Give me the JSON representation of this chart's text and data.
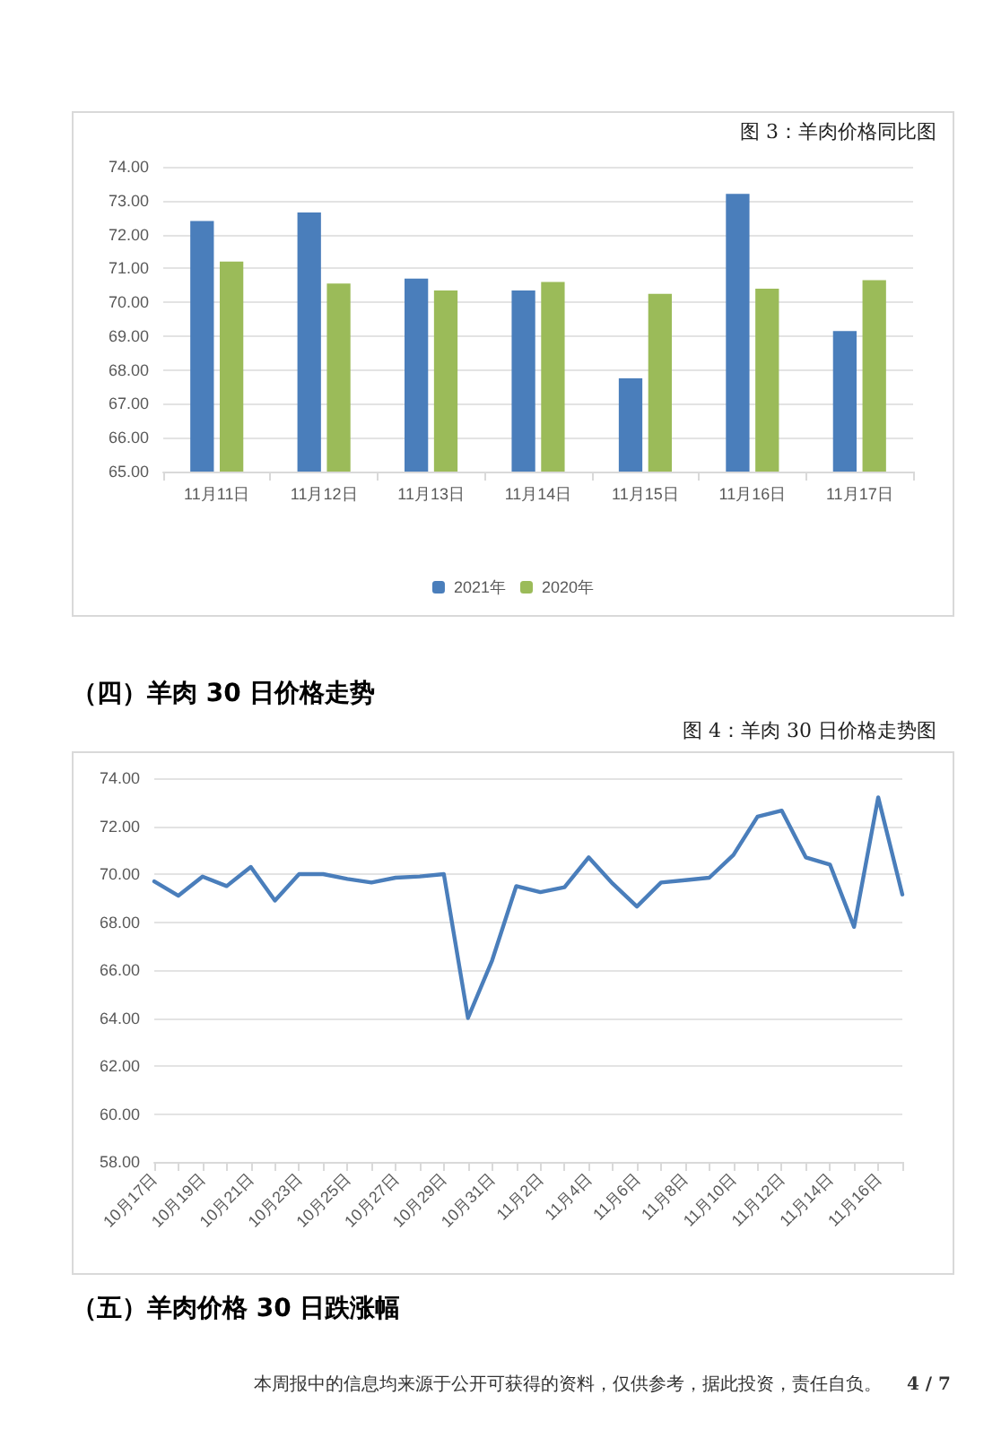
{
  "chart_data": [
    {
      "type": "bar",
      "title": "图 3：羊肉价格同比图",
      "categories": [
        "11月11日",
        "11月12日",
        "11月13日",
        "11月14日",
        "11月15日",
        "11月16日",
        "11月17日"
      ],
      "series": [
        {
          "name": "2021年",
          "color": "#4a7ebb",
          "values": [
            72.4,
            72.65,
            70.7,
            70.35,
            67.75,
            73.2,
            69.15
          ]
        },
        {
          "name": "2020年",
          "color": "#9bbb59",
          "values": [
            71.2,
            70.55,
            70.35,
            70.6,
            70.25,
            70.4,
            70.65
          ]
        }
      ],
      "ylim": [
        65,
        74
      ],
      "yticks": [
        {
          "value": 65,
          "label": "65.00"
        },
        {
          "value": 66,
          "label": "66.00"
        },
        {
          "value": 67,
          "label": "67.00"
        },
        {
          "value": 68,
          "label": "68.00"
        },
        {
          "value": 69,
          "label": "69.00"
        },
        {
          "value": 70,
          "label": "70.00"
        },
        {
          "value": 71,
          "label": "71.00"
        },
        {
          "value": 72,
          "label": "72.00"
        },
        {
          "value": 73,
          "label": "73.00"
        },
        {
          "value": 74,
          "label": "74.00"
        }
      ],
      "grid": "y",
      "legend": "bottom"
    },
    {
      "type": "line",
      "title": "（四）羊肉 30 日价格走势",
      "subtitle": "图 4：羊肉 30 日价格走势图",
      "categories": [
        "10月17日",
        null,
        "10月19日",
        null,
        "10月21日",
        null,
        "10月23日",
        null,
        "10月25日",
        null,
        "10月27日",
        null,
        "10月29日",
        null,
        "10月31日",
        null,
        "11月2日",
        null,
        "11月4日",
        null,
        "11月6日",
        null,
        "11月8日",
        null,
        "11月10日",
        null,
        "11月12日",
        null,
        "11月14日",
        null,
        "11月16日",
        null
      ],
      "series": [
        {
          "color": "#4a7ebb",
          "values": [
            69.7,
            69.1,
            69.9,
            69.5,
            70.3,
            68.9,
            70.0,
            70.0,
            69.8,
            69.65,
            69.85,
            69.9,
            70.0,
            64.0,
            66.4,
            69.5,
            69.25,
            69.45,
            70.7,
            69.6,
            68.65,
            69.65,
            69.75,
            69.85,
            70.8,
            72.4,
            72.65,
            70.7,
            70.4,
            67.8,
            73.2,
            69.15
          ]
        }
      ],
      "ylim": [
        58,
        74
      ],
      "yticks": [
        {
          "value": 58,
          "label": "58.00"
        },
        {
          "value": 60,
          "label": "60.00"
        },
        {
          "value": 62,
          "label": "62.00"
        },
        {
          "value": 64,
          "label": "64.00"
        },
        {
          "value": 66,
          "label": "66.00"
        },
        {
          "value": 68,
          "label": "68.00"
        },
        {
          "value": 70,
          "label": "70.00"
        },
        {
          "value": 72,
          "label": "72.00"
        },
        {
          "value": 74,
          "label": "74.00"
        }
      ],
      "grid": "y",
      "marker": "none",
      "line_style": "solid",
      "annotations": [
        "（五）羊肉价格 30 日跌涨幅",
        "本周报中的信息均来源于公开可获得的资料，仅供参考，据此投资，责任自负。",
        "4 / 7"
      ]
    }
  ]
}
